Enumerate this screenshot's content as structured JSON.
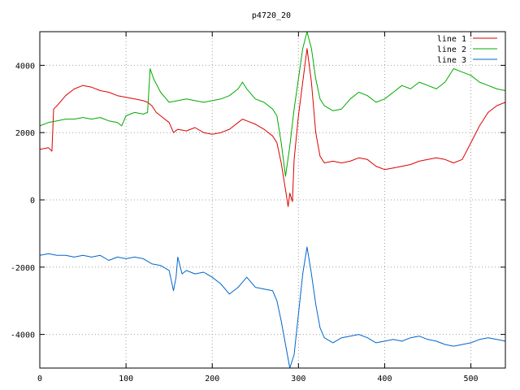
{
  "chart_data": {
    "type": "line",
    "title": "p4720_20",
    "xlabel": "",
    "ylabel": "",
    "xlim": [
      0,
      540
    ],
    "ylim": [
      -5000,
      5000
    ],
    "xticks": [
      0,
      100,
      200,
      300,
      400,
      500
    ],
    "yticks": [
      -4000,
      -2000,
      0,
      2000,
      4000
    ],
    "xtick_labels": [
      "0",
      "100",
      "200",
      "300",
      "400",
      "500"
    ],
    "ytick_labels": [
      "-4000",
      "-2000",
      "0",
      "2000",
      "4000"
    ],
    "grid": true,
    "legend_position": "top-right",
    "series": [
      {
        "name": "line 1",
        "color": "#dd0000",
        "points": [
          [
            0,
            1500
          ],
          [
            10,
            1550
          ],
          [
            14,
            1450
          ],
          [
            16,
            2700
          ],
          [
            20,
            2800
          ],
          [
            30,
            3100
          ],
          [
            40,
            3300
          ],
          [
            50,
            3400
          ],
          [
            60,
            3350
          ],
          [
            70,
            3250
          ],
          [
            80,
            3200
          ],
          [
            90,
            3100
          ],
          [
            100,
            3050
          ],
          [
            110,
            3000
          ],
          [
            120,
            2950
          ],
          [
            125,
            2900
          ],
          [
            130,
            2800
          ],
          [
            135,
            2600
          ],
          [
            140,
            2500
          ],
          [
            150,
            2300
          ],
          [
            155,
            2000
          ],
          [
            160,
            2100
          ],
          [
            170,
            2050
          ],
          [
            180,
            2150
          ],
          [
            190,
            2000
          ],
          [
            200,
            1950
          ],
          [
            210,
            2000
          ],
          [
            220,
            2100
          ],
          [
            230,
            2300
          ],
          [
            235,
            2400
          ],
          [
            240,
            2350
          ],
          [
            250,
            2250
          ],
          [
            260,
            2100
          ],
          [
            270,
            1900
          ],
          [
            275,
            1700
          ],
          [
            280,
            1100
          ],
          [
            285,
            300
          ],
          [
            288,
            -200
          ],
          [
            290,
            200
          ],
          [
            293,
            -50
          ],
          [
            295,
            1200
          ],
          [
            300,
            2500
          ],
          [
            305,
            3500
          ],
          [
            310,
            4500
          ],
          [
            315,
            3500
          ],
          [
            320,
            2000
          ],
          [
            325,
            1300
          ],
          [
            330,
            1100
          ],
          [
            340,
            1150
          ],
          [
            350,
            1100
          ],
          [
            360,
            1150
          ],
          [
            370,
            1250
          ],
          [
            380,
            1200
          ],
          [
            390,
            1000
          ],
          [
            400,
            900
          ],
          [
            410,
            950
          ],
          [
            420,
            1000
          ],
          [
            430,
            1050
          ],
          [
            440,
            1150
          ],
          [
            450,
            1200
          ],
          [
            460,
            1250
          ],
          [
            470,
            1200
          ],
          [
            480,
            1100
          ],
          [
            490,
            1200
          ],
          [
            500,
            1700
          ],
          [
            510,
            2200
          ],
          [
            520,
            2600
          ],
          [
            530,
            2800
          ],
          [
            540,
            2900
          ]
        ]
      },
      {
        "name": "line 2",
        "color": "#00aa00",
        "points": [
          [
            0,
            2200
          ],
          [
            10,
            2300
          ],
          [
            20,
            2350
          ],
          [
            30,
            2400
          ],
          [
            40,
            2400
          ],
          [
            50,
            2450
          ],
          [
            60,
            2400
          ],
          [
            70,
            2450
          ],
          [
            80,
            2350
          ],
          [
            90,
            2300
          ],
          [
            95,
            2200
          ],
          [
            100,
            2500
          ],
          [
            110,
            2600
          ],
          [
            120,
            2550
          ],
          [
            125,
            2600
          ],
          [
            128,
            3900
          ],
          [
            132,
            3600
          ],
          [
            140,
            3200
          ],
          [
            150,
            2900
          ],
          [
            160,
            2950
          ],
          [
            170,
            3000
          ],
          [
            180,
            2950
          ],
          [
            190,
            2900
          ],
          [
            200,
            2950
          ],
          [
            210,
            3000
          ],
          [
            220,
            3100
          ],
          [
            230,
            3300
          ],
          [
            235,
            3500
          ],
          [
            240,
            3300
          ],
          [
            250,
            3000
          ],
          [
            260,
            2900
          ],
          [
            270,
            2700
          ],
          [
            275,
            2500
          ],
          [
            280,
            1700
          ],
          [
            285,
            700
          ],
          [
            290,
            1600
          ],
          [
            295,
            2700
          ],
          [
            300,
            3600
          ],
          [
            305,
            4500
          ],
          [
            310,
            5000
          ],
          [
            315,
            4500
          ],
          [
            320,
            3600
          ],
          [
            325,
            3000
          ],
          [
            330,
            2800
          ],
          [
            340,
            2650
          ],
          [
            350,
            2700
          ],
          [
            360,
            3000
          ],
          [
            370,
            3200
          ],
          [
            380,
            3100
          ],
          [
            390,
            2900
          ],
          [
            400,
            3000
          ],
          [
            410,
            3200
          ],
          [
            420,
            3400
          ],
          [
            430,
            3300
          ],
          [
            440,
            3500
          ],
          [
            450,
            3400
          ],
          [
            460,
            3300
          ],
          [
            470,
            3500
          ],
          [
            480,
            3900
          ],
          [
            490,
            3800
          ],
          [
            500,
            3700
          ],
          [
            510,
            3500
          ],
          [
            520,
            3400
          ],
          [
            530,
            3300
          ],
          [
            540,
            3250
          ]
        ]
      },
      {
        "name": "line 3",
        "color": "#0066cc",
        "points": [
          [
            0,
            -1650
          ],
          [
            10,
            -1600
          ],
          [
            20,
            -1650
          ],
          [
            30,
            -1650
          ],
          [
            40,
            -1700
          ],
          [
            50,
            -1650
          ],
          [
            60,
            -1700
          ],
          [
            70,
            -1650
          ],
          [
            80,
            -1800
          ],
          [
            90,
            -1700
          ],
          [
            100,
            -1750
          ],
          [
            110,
            -1700
          ],
          [
            120,
            -1750
          ],
          [
            130,
            -1900
          ],
          [
            140,
            -1950
          ],
          [
            150,
            -2100
          ],
          [
            155,
            -2700
          ],
          [
            158,
            -2300
          ],
          [
            160,
            -1700
          ],
          [
            165,
            -2200
          ],
          [
            170,
            -2100
          ],
          [
            180,
            -2200
          ],
          [
            190,
            -2150
          ],
          [
            200,
            -2300
          ],
          [
            210,
            -2500
          ],
          [
            220,
            -2800
          ],
          [
            230,
            -2600
          ],
          [
            240,
            -2300
          ],
          [
            250,
            -2600
          ],
          [
            260,
            -2650
          ],
          [
            270,
            -2700
          ],
          [
            275,
            -3000
          ],
          [
            280,
            -3600
          ],
          [
            285,
            -4300
          ],
          [
            290,
            -5000
          ],
          [
            295,
            -4600
          ],
          [
            300,
            -3400
          ],
          [
            305,
            -2200
          ],
          [
            310,
            -1400
          ],
          [
            315,
            -2200
          ],
          [
            320,
            -3100
          ],
          [
            325,
            -3800
          ],
          [
            330,
            -4100
          ],
          [
            340,
            -4250
          ],
          [
            350,
            -4100
          ],
          [
            360,
            -4050
          ],
          [
            370,
            -4000
          ],
          [
            380,
            -4100
          ],
          [
            390,
            -4250
          ],
          [
            400,
            -4200
          ],
          [
            410,
            -4150
          ],
          [
            420,
            -4200
          ],
          [
            430,
            -4100
          ],
          [
            440,
            -4050
          ],
          [
            450,
            -4150
          ],
          [
            460,
            -4200
          ],
          [
            470,
            -4300
          ],
          [
            480,
            -4350
          ],
          [
            490,
            -4300
          ],
          [
            500,
            -4250
          ],
          [
            510,
            -4150
          ],
          [
            520,
            -4100
          ],
          [
            530,
            -4150
          ],
          [
            540,
            -4200
          ]
        ]
      }
    ]
  }
}
